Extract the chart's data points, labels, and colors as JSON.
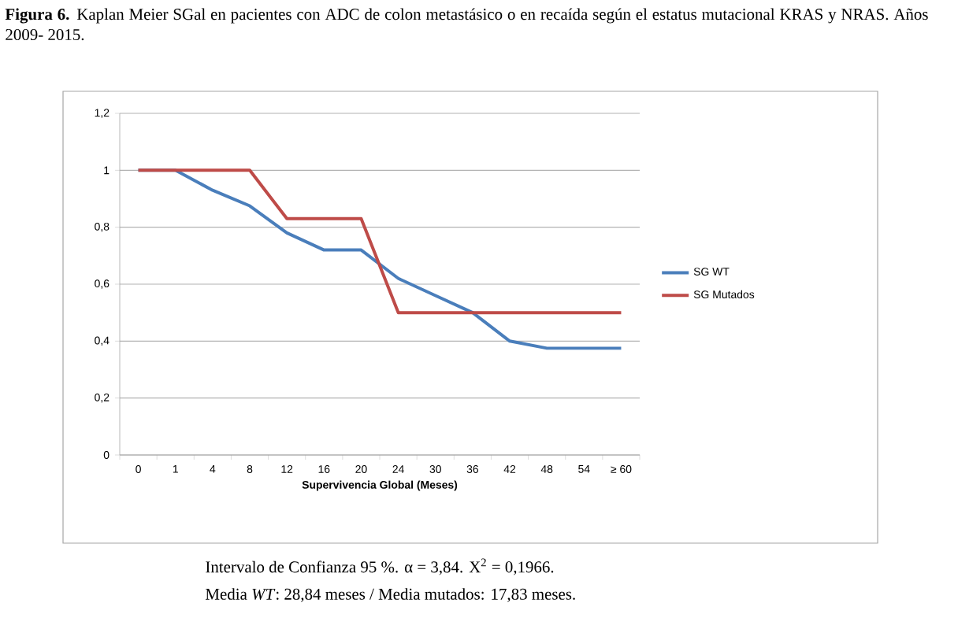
{
  "chart_data": {
    "type": "line",
    "title": "**Figura 6.** Kaplan Meier SGal en pacientes con ADC de colon metastásico o en recaída según el estatus mutacional KRAS y NRAS. Años 2009- 2015.",
    "xlabel": "Supervivencia Global (Meses)",
    "categories": [
      "0",
      "1",
      "4",
      "8",
      "12",
      "16",
      "20",
      "24",
      "30",
      "36",
      "42",
      "48",
      "54",
      "≥ 60"
    ],
    "series": [
      {
        "name": "SG WT",
        "color": "#4a7ebb",
        "values": [
          1,
          1,
          0.93,
          0.875,
          0.78,
          0.72,
          0.72,
          0.62,
          0.56,
          0.5,
          0.4,
          0.375,
          0.375,
          0.375
        ]
      },
      {
        "name": "SG Mutados",
        "color": "#be4b48",
        "values": [
          1,
          1,
          1,
          1,
          0.83,
          0.83,
          0.83,
          0.5,
          0.5,
          0.5,
          0.5,
          0.5,
          0.5,
          0.5
        ]
      }
    ],
    "ylim": [
      0,
      1.2
    ],
    "yticks": [
      0,
      {
        "value": 0.2,
        "label": "0,2"
      },
      {
        "value": 0.4,
        "label": "0,4"
      },
      {
        "value": 0.6,
        "label": "0,6"
      },
      {
        "value": 0.8,
        "label": "0,8"
      },
      1,
      {
        "value": 1.2,
        "label": "1,2"
      }
    ],
    "grid": "y",
    "legend": "right",
    "line_style": "solid",
    "annotations": [
      "Intervalo de Confianza 95 %. α = 3,84. X$^{2}$ = 0,1966.",
      "Media *WT*: 28,84 meses / Media mutados: 17,83 meses."
    ]
  }
}
